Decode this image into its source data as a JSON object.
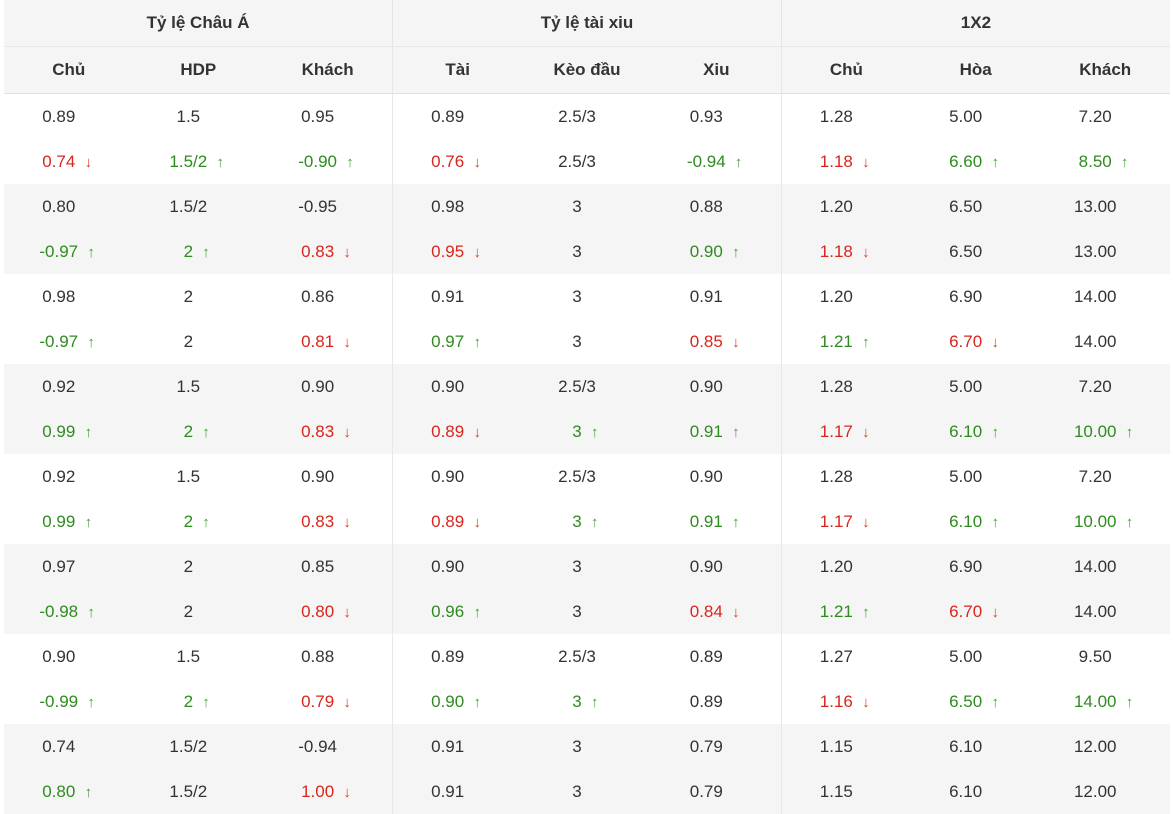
{
  "groups": [
    "Tỷ lệ Châu Á",
    "Tỷ lệ tài xiu",
    "1X2"
  ],
  "columns": [
    "Chủ",
    "HDP",
    "Khách",
    "Tài",
    "Kèo đầu",
    "Xiu",
    "Chủ",
    "Hòa",
    "Khách"
  ],
  "colors": {
    "up": "#2e8b1f",
    "down": "#d9261c",
    "up_arrow": "#47a23a",
    "down_arrow": "#e04020",
    "shade": "#f5f5f5"
  },
  "rows": [
    [
      [
        "0.89",
        ""
      ],
      [
        "1.5",
        ""
      ],
      [
        "0.95",
        ""
      ],
      [
        "0.89",
        ""
      ],
      [
        "2.5/3",
        ""
      ],
      [
        "0.93",
        ""
      ],
      [
        "1.28",
        ""
      ],
      [
        "5.00",
        ""
      ],
      [
        "7.20",
        ""
      ]
    ],
    [
      [
        "0.74",
        "down"
      ],
      [
        "1.5/2",
        "up"
      ],
      [
        "-0.90",
        "up"
      ],
      [
        "0.76",
        "down"
      ],
      [
        "2.5/3",
        ""
      ],
      [
        "-0.94",
        "up"
      ],
      [
        "1.18",
        "down"
      ],
      [
        "6.60",
        "up"
      ],
      [
        "8.50",
        "up"
      ]
    ],
    [
      [
        "0.80",
        ""
      ],
      [
        "1.5/2",
        ""
      ],
      [
        "-0.95",
        ""
      ],
      [
        "0.98",
        ""
      ],
      [
        "3",
        ""
      ],
      [
        "0.88",
        ""
      ],
      [
        "1.20",
        ""
      ],
      [
        "6.50",
        ""
      ],
      [
        "13.00",
        ""
      ]
    ],
    [
      [
        "-0.97",
        "up"
      ],
      [
        "2",
        "up"
      ],
      [
        "0.83",
        "down"
      ],
      [
        "0.95",
        "down"
      ],
      [
        "3",
        ""
      ],
      [
        "0.90",
        "up"
      ],
      [
        "1.18",
        "down"
      ],
      [
        "6.50",
        ""
      ],
      [
        "13.00",
        ""
      ]
    ],
    [
      [
        "0.98",
        ""
      ],
      [
        "2",
        ""
      ],
      [
        "0.86",
        ""
      ],
      [
        "0.91",
        ""
      ],
      [
        "3",
        ""
      ],
      [
        "0.91",
        ""
      ],
      [
        "1.20",
        ""
      ],
      [
        "6.90",
        ""
      ],
      [
        "14.00",
        ""
      ]
    ],
    [
      [
        "-0.97",
        "up"
      ],
      [
        "2",
        ""
      ],
      [
        "0.81",
        "down"
      ],
      [
        "0.97",
        "up"
      ],
      [
        "3",
        ""
      ],
      [
        "0.85",
        "down"
      ],
      [
        "1.21",
        "up"
      ],
      [
        "6.70",
        "down"
      ],
      [
        "14.00",
        ""
      ]
    ],
    [
      [
        "0.92",
        ""
      ],
      [
        "1.5",
        ""
      ],
      [
        "0.90",
        ""
      ],
      [
        "0.90",
        ""
      ],
      [
        "2.5/3",
        ""
      ],
      [
        "0.90",
        ""
      ],
      [
        "1.28",
        ""
      ],
      [
        "5.00",
        ""
      ],
      [
        "7.20",
        ""
      ]
    ],
    [
      [
        "0.99",
        "up"
      ],
      [
        "2",
        "up"
      ],
      [
        "0.83",
        "down"
      ],
      [
        "0.89",
        "down"
      ],
      [
        "3",
        "up"
      ],
      [
        "0.91",
        "up"
      ],
      [
        "1.17",
        "down"
      ],
      [
        "6.10",
        "up"
      ],
      [
        "10.00",
        "up"
      ]
    ],
    [
      [
        "0.92",
        ""
      ],
      [
        "1.5",
        ""
      ],
      [
        "0.90",
        ""
      ],
      [
        "0.90",
        ""
      ],
      [
        "2.5/3",
        ""
      ],
      [
        "0.90",
        ""
      ],
      [
        "1.28",
        ""
      ],
      [
        "5.00",
        ""
      ],
      [
        "7.20",
        ""
      ]
    ],
    [
      [
        "0.99",
        "up"
      ],
      [
        "2",
        "up"
      ],
      [
        "0.83",
        "down"
      ],
      [
        "0.89",
        "down"
      ],
      [
        "3",
        "up"
      ],
      [
        "0.91",
        "up"
      ],
      [
        "1.17",
        "down"
      ],
      [
        "6.10",
        "up"
      ],
      [
        "10.00",
        "up"
      ]
    ],
    [
      [
        "0.97",
        ""
      ],
      [
        "2",
        ""
      ],
      [
        "0.85",
        ""
      ],
      [
        "0.90",
        ""
      ],
      [
        "3",
        ""
      ],
      [
        "0.90",
        ""
      ],
      [
        "1.20",
        ""
      ],
      [
        "6.90",
        ""
      ],
      [
        "14.00",
        ""
      ]
    ],
    [
      [
        "-0.98",
        "up"
      ],
      [
        "2",
        ""
      ],
      [
        "0.80",
        "down"
      ],
      [
        "0.96",
        "up"
      ],
      [
        "3",
        ""
      ],
      [
        "0.84",
        "down"
      ],
      [
        "1.21",
        "up"
      ],
      [
        "6.70",
        "down"
      ],
      [
        "14.00",
        ""
      ]
    ],
    [
      [
        "0.90",
        ""
      ],
      [
        "1.5",
        ""
      ],
      [
        "0.88",
        ""
      ],
      [
        "0.89",
        ""
      ],
      [
        "2.5/3",
        ""
      ],
      [
        "0.89",
        ""
      ],
      [
        "1.27",
        ""
      ],
      [
        "5.00",
        ""
      ],
      [
        "9.50",
        ""
      ]
    ],
    [
      [
        "-0.99",
        "up"
      ],
      [
        "2",
        "up"
      ],
      [
        "0.79",
        "down"
      ],
      [
        "0.90",
        "up"
      ],
      [
        "3",
        "up"
      ],
      [
        "0.89",
        ""
      ],
      [
        "1.16",
        "down"
      ],
      [
        "6.50",
        "up"
      ],
      [
        "14.00",
        "up"
      ]
    ],
    [
      [
        "0.74",
        ""
      ],
      [
        "1.5/2",
        ""
      ],
      [
        "-0.94",
        ""
      ],
      [
        "0.91",
        ""
      ],
      [
        "3",
        ""
      ],
      [
        "0.79",
        ""
      ],
      [
        "1.15",
        ""
      ],
      [
        "6.10",
        ""
      ],
      [
        "12.00",
        ""
      ]
    ],
    [
      [
        "0.80",
        "up"
      ],
      [
        "1.5/2",
        ""
      ],
      [
        "1.00",
        "down"
      ],
      [
        "0.91",
        ""
      ],
      [
        "3",
        ""
      ],
      [
        "0.79",
        ""
      ],
      [
        "1.15",
        ""
      ],
      [
        "6.10",
        ""
      ],
      [
        "12.00",
        ""
      ]
    ]
  ]
}
